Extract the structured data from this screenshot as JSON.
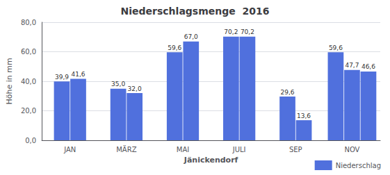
{
  "chart_data": {
    "type": "bar",
    "title": "Niederschlagsmenge  2016",
    "xlabel": "Jänickendorf",
    "ylabel": "Höhe in mm",
    "categories": [
      "JAN",
      "MÄRZ",
      "MAI",
      "JULI",
      "SEP",
      "NOV"
    ],
    "series": [
      {
        "name": "Niederschlag",
        "values": [
          [
            39.9,
            41.6
          ],
          [
            35.0,
            32.0
          ],
          [
            59.6,
            67.0
          ],
          [
            70.2,
            70.2
          ],
          [
            29.6,
            13.6
          ],
          [
            59.6,
            47.7,
            46.6
          ]
        ],
        "value_labels": [
          [
            "39,9",
            "41,6"
          ],
          [
            "35,0",
            "32,0"
          ],
          [
            "59,6",
            "67,0"
          ],
          [
            "70,2",
            "70,2"
          ],
          [
            "29,6",
            "13,6"
          ],
          [
            "59,6",
            "47,7",
            "46,6"
          ]
        ]
      }
    ],
    "ylim": [
      0,
      80
    ],
    "yticks": [
      {
        "value": 0.0,
        "label": "0,0"
      },
      {
        "value": 20.0,
        "label": "20,0"
      },
      {
        "value": 40.0,
        "label": "40,0"
      },
      {
        "value": 60.0,
        "label": "60,0"
      },
      {
        "value": 80.0,
        "label": "80,0"
      }
    ],
    "grid": true,
    "legend": "lower right",
    "data_labels": true
  }
}
